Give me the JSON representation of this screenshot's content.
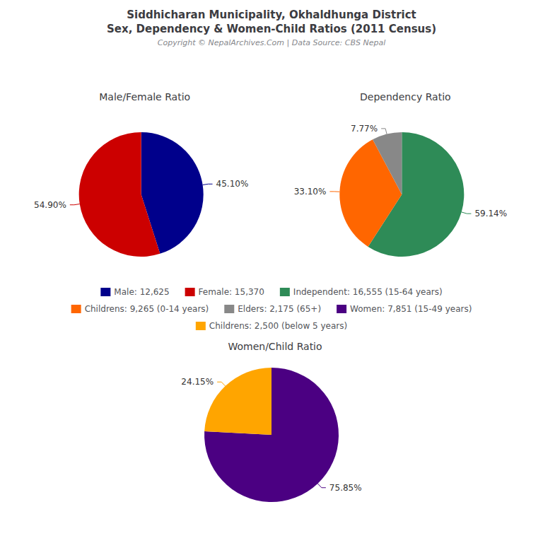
{
  "title": "Siddhicharan Municipality, Okhaldhunga District\nSex, Dependency & Women-Child Ratios (2011 Census)",
  "subtitle": "Copyright © NepalArchives.Com | Data Source: CBS Nepal",
  "legend": "center",
  "chart_data": [
    {
      "type": "pie",
      "title": "Male/Female Ratio",
      "categories": [
        "Male: 12,625",
        "Female: 15,370"
      ],
      "values": [
        45.1,
        54.9
      ],
      "value_labels": [
        "45.10%",
        "54.90%"
      ],
      "colors": [
        "#00008B",
        "#CC0000"
      ],
      "data_labels": true
    },
    {
      "type": "pie",
      "title": "Dependency Ratio",
      "categories": [
        "Independent: 16,555 (15-64 years)",
        "Childrens: 9,265 (0-14 years)",
        "Elders: 2,175 (65+)"
      ],
      "values": [
        59.14,
        33.1,
        7.77
      ],
      "value_labels": [
        "59.14%",
        "33.10%",
        "7.77%"
      ],
      "colors": [
        "#2E8B57",
        "#FF6600",
        "#888888"
      ],
      "data_labels": true
    },
    {
      "type": "pie",
      "title": "Women/Child Ratio",
      "categories": [
        "Women: 7,851 (15-49 years)",
        "Childrens: 2,500 (below 5 years)"
      ],
      "values": [
        75.85,
        24.15
      ],
      "value_labels": [
        "75.85%",
        "24.15%"
      ],
      "colors": [
        "#4B0082",
        "#FFA500"
      ],
      "data_labels": true
    }
  ]
}
